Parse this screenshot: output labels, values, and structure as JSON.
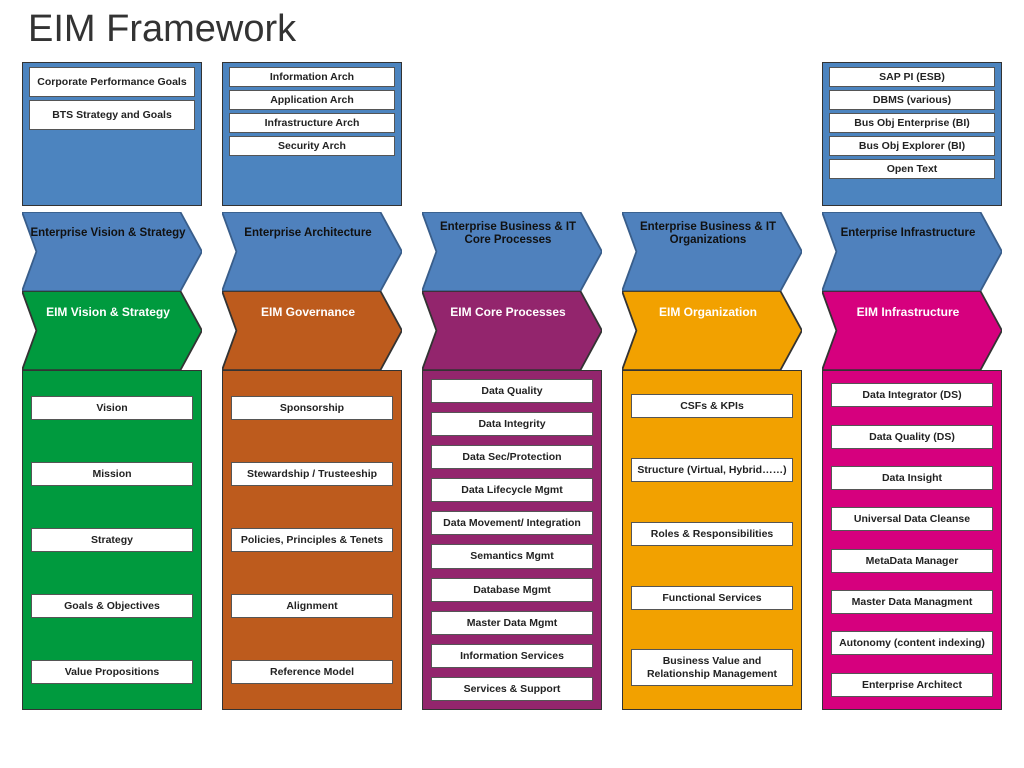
{
  "title": "EIM Framework",
  "colors": {
    "blue_header": "#4f81bd",
    "blue_border": "#385d8a",
    "arrow_yellow": "#f7a11a",
    "arrow_yellow_up": "#b7d433",
    "blue_box": "#4c84bf"
  },
  "columns": [
    {
      "key": "vision",
      "color": "#009a3e",
      "top_items": [
        "Corporate Performance Goals",
        "BTS Strategy and Goals"
      ],
      "enterprise_label": "Enterprise Vision & Strategy",
      "eim_label": "EIM Vision & Strategy",
      "bottom_items": [
        "Vision",
        "Mission",
        "Strategy",
        "Goals & Objectives",
        "Value Propositions"
      ]
    },
    {
      "key": "governance",
      "color": "#bd5b1d",
      "top_items": [
        "Information Arch",
        "Application Arch",
        "Infrastructure Arch",
        "Security Arch"
      ],
      "enterprise_label": "Enterprise Architecture",
      "eim_label": "EIM Governance",
      "bottom_items": [
        "Sponsorship",
        "Stewardship / Trusteeship",
        "Policies, Principles & Tenets",
        "Alignment",
        "Reference Model"
      ]
    },
    {
      "key": "core",
      "color": "#93256d",
      "top_items": [],
      "enterprise_label": "Enterprise Business & IT Core Processes",
      "eim_label": "EIM Core Processes",
      "bottom_items": [
        "Data Quality",
        "Data Integrity",
        "Data Sec/Protection",
        "Data Lifecycle Mgmt",
        "Data Movement/ Integration",
        "Semantics  Mgmt",
        "Database Mgmt",
        "Master Data Mgmt",
        "Information Services",
        "Services & Support"
      ]
    },
    {
      "key": "org",
      "color": "#f2a100",
      "top_items": [],
      "enterprise_label": "Enterprise Business & IT Organizations",
      "eim_label": "EIM Organization",
      "bottom_items": [
        "CSFs & KPIs",
        "Structure (Virtual, Hybrid……)",
        "Roles & Responsibilities",
        "Functional Services",
        "Business Value and Relationship Management"
      ]
    },
    {
      "key": "infra",
      "color": "#d6007e",
      "top_items": [
        "SAP PI (ESB)",
        "DBMS (various)",
        "Bus Obj Enterprise (BI)",
        "Bus Obj Explorer (BI)",
        "Open Text"
      ],
      "enterprise_label": "Enterprise Infrastructure",
      "eim_label": "EIM Infrastructure",
      "bottom_items": [
        "Data Integrator (DS)",
        "Data Quality (DS)",
        "Data Insight",
        "Universal Data Cleanse",
        "MetaData Manager",
        "Master Data Managment",
        "Autonomy (content indexing)",
        "Enterprise Architect"
      ]
    }
  ]
}
